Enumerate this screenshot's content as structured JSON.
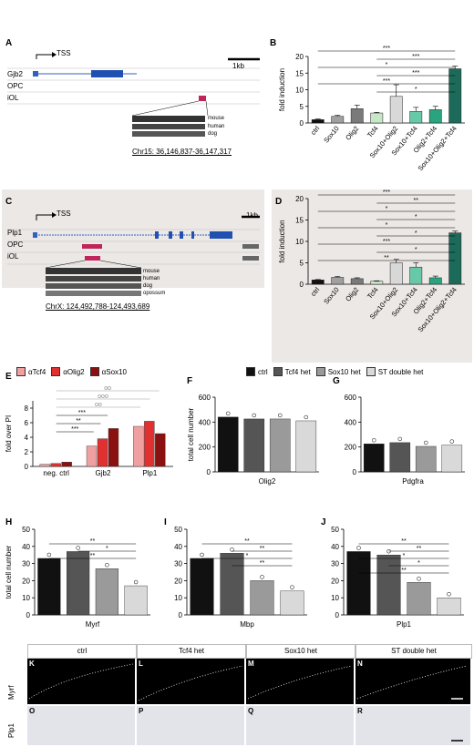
{
  "panels": {
    "A": "A",
    "B": "B",
    "C": "C",
    "D": "D",
    "E": "E",
    "F": "F",
    "G": "G",
    "H": "H",
    "I": "I",
    "J": "J",
    "K": "K",
    "L": "L",
    "M": "M",
    "N": "N",
    "O": "O",
    "P": "P",
    "Q": "Q",
    "R": "R"
  },
  "genome_a": {
    "tss": "TSS",
    "scale": "1kb",
    "track1": "Gjb2",
    "track2": "OPC",
    "track3": "iOL",
    "species": [
      "mouse",
      "human",
      "dog"
    ],
    "coord": "Chr15: 36,146,837-36,147,317"
  },
  "genome_c": {
    "tss": "TSS",
    "scale": "1kb",
    "track1": "Plp1",
    "track2": "OPC",
    "track3": "iOL",
    "species": [
      "mouse",
      "human",
      "dog",
      "opossum"
    ],
    "coord": "ChrX: 124,492,788-124,493,689"
  },
  "colors": {
    "ctrl": "#111111",
    "tcf4het": "#555555",
    "sox10het": "#9a9a9a",
    "sthet": "#d9d9d9",
    "atcf4": "#f0a0a0",
    "aolig2": "#e03030",
    "asox10": "#8b1010",
    "sox10olig2tcf4": "#1c6b5a",
    "sox10tcf4": "#67c9a8",
    "olig2tcf4": "#2aa37f",
    "sox10olig2": "#d8d8d8",
    "olig2": "#7a7a7a",
    "sox10": "#a0a0a0",
    "tcf4": "#c8e6c8"
  },
  "legend_e": [
    "αTcf4",
    "αOlig2",
    "αSox10"
  ],
  "legend_f": [
    "ctrl",
    "Tcf4 het",
    "Sox10 het",
    "ST double het"
  ],
  "chart_data": [
    {
      "id": "B",
      "type": "bar",
      "ylabel": "fold induction",
      "ylim": [
        0,
        20
      ],
      "yticks": [
        0,
        5,
        10,
        15,
        20
      ],
      "categories": [
        "ctrl",
        "Sox10",
        "Olig2",
        "Tcf4",
        "Sox10+Olig2",
        "Sox10+Tcf4",
        "Olig2+Tcf4",
        "Sox10+Olig2+Tcf4"
      ],
      "values": [
        1,
        2,
        4.3,
        3,
        8,
        3.5,
        4,
        16.3
      ],
      "errors": [
        0.2,
        0.3,
        1.1,
        0.2,
        3.5,
        1.2,
        1.0,
        0.8
      ],
      "sig": [
        "***",
        "***",
        "*",
        "***",
        "***",
        "*"
      ]
    },
    {
      "id": "D",
      "type": "bar",
      "ylabel": "fold induction",
      "ylim": [
        0,
        20
      ],
      "yticks": [
        0,
        5,
        10,
        15,
        20
      ],
      "categories": [
        "ctrl",
        "Sox10",
        "Olig2",
        "Tcf4",
        "Sox10+Olig2",
        "Sox10+Tcf4",
        "Olig2+Tcf4",
        "Sox10+Olig2+Tcf4"
      ],
      "values": [
        1,
        1.6,
        1.3,
        0.7,
        5,
        4,
        1.5,
        12
      ],
      "errors": [
        0.1,
        0.2,
        0.2,
        0.1,
        0.8,
        1.0,
        0.4,
        0.4
      ],
      "sig": [
        "***",
        "**",
        "*",
        "*",
        "*",
        "*",
        "***",
        "*",
        "**"
      ]
    },
    {
      "id": "E",
      "type": "bar",
      "ylabel": "fold over PI",
      "ylim": [
        0,
        9
      ],
      "yticks": [
        0,
        2,
        4,
        6,
        8
      ],
      "categories": [
        "neg. ctrl",
        "Gjb2",
        "Plp1"
      ],
      "series": [
        {
          "name": "αTcf4",
          "values": [
            0.3,
            2.8,
            5.5
          ]
        },
        {
          "name": "αOlig2",
          "values": [
            0.4,
            3.8,
            6.2
          ]
        },
        {
          "name": "αSox10",
          "values": [
            0.6,
            5.2,
            4.5
          ]
        }
      ],
      "sig": [
        "***",
        "**",
        "***",
        "oo",
        "ooo",
        "oo"
      ]
    },
    {
      "id": "F",
      "type": "bar",
      "ylabel": "total cell number",
      "xlabel": "Olig2",
      "ylim": [
        0,
        600
      ],
      "yticks": [
        0,
        200,
        400,
        600
      ],
      "categories": [
        "ctrl",
        "Tcf4 het",
        "Sox10 het",
        "ST double het"
      ],
      "values": [
        440,
        425,
        425,
        410
      ]
    },
    {
      "id": "G",
      "type": "bar",
      "ylabel": "",
      "xlabel": "Pdgfra",
      "ylim": [
        0,
        600
      ],
      "yticks": [
        0,
        200,
        400,
        600
      ],
      "categories": [
        "ctrl",
        "Tcf4 het",
        "Sox10 het",
        "ST double het"
      ],
      "values": [
        225,
        235,
        205,
        215
      ]
    },
    {
      "id": "H",
      "type": "bar",
      "ylabel": "total cell number",
      "xlabel": "Myrf",
      "ylim": [
        0,
        50
      ],
      "yticks": [
        0,
        10,
        20,
        30,
        40,
        50
      ],
      "categories": [
        "ctrl",
        "Tcf4 het",
        "Sox10 het",
        "ST double het"
      ],
      "values": [
        33,
        37,
        27,
        17
      ],
      "sig": [
        "**",
        "*",
        "**"
      ]
    },
    {
      "id": "I",
      "type": "bar",
      "ylabel": "",
      "xlabel": "Mbp",
      "ylim": [
        0,
        50
      ],
      "yticks": [
        0,
        10,
        20,
        30,
        40,
        50
      ],
      "categories": [
        "ctrl",
        "Tcf4 het",
        "Sox10 het",
        "ST double het"
      ],
      "values": [
        33,
        36,
        20,
        14
      ],
      "sig": [
        "**",
        "**",
        "*",
        "**"
      ]
    },
    {
      "id": "J",
      "type": "bar",
      "ylabel": "",
      "xlabel": "Plp1",
      "ylim": [
        0,
        50
      ],
      "yticks": [
        0,
        10,
        20,
        30,
        40,
        50
      ],
      "categories": [
        "ctrl",
        "Tcf4 het",
        "Sox10 het",
        "ST double het"
      ],
      "values": [
        37,
        35,
        19,
        10
      ],
      "sig": [
        "**",
        "**",
        "*",
        "*",
        "**"
      ]
    }
  ],
  "micro": {
    "cols": [
      "ctrl",
      "Tcf4 het",
      "Sox10 het",
      "ST double het"
    ],
    "row1": "Myrf",
    "row2": "Plp1"
  }
}
